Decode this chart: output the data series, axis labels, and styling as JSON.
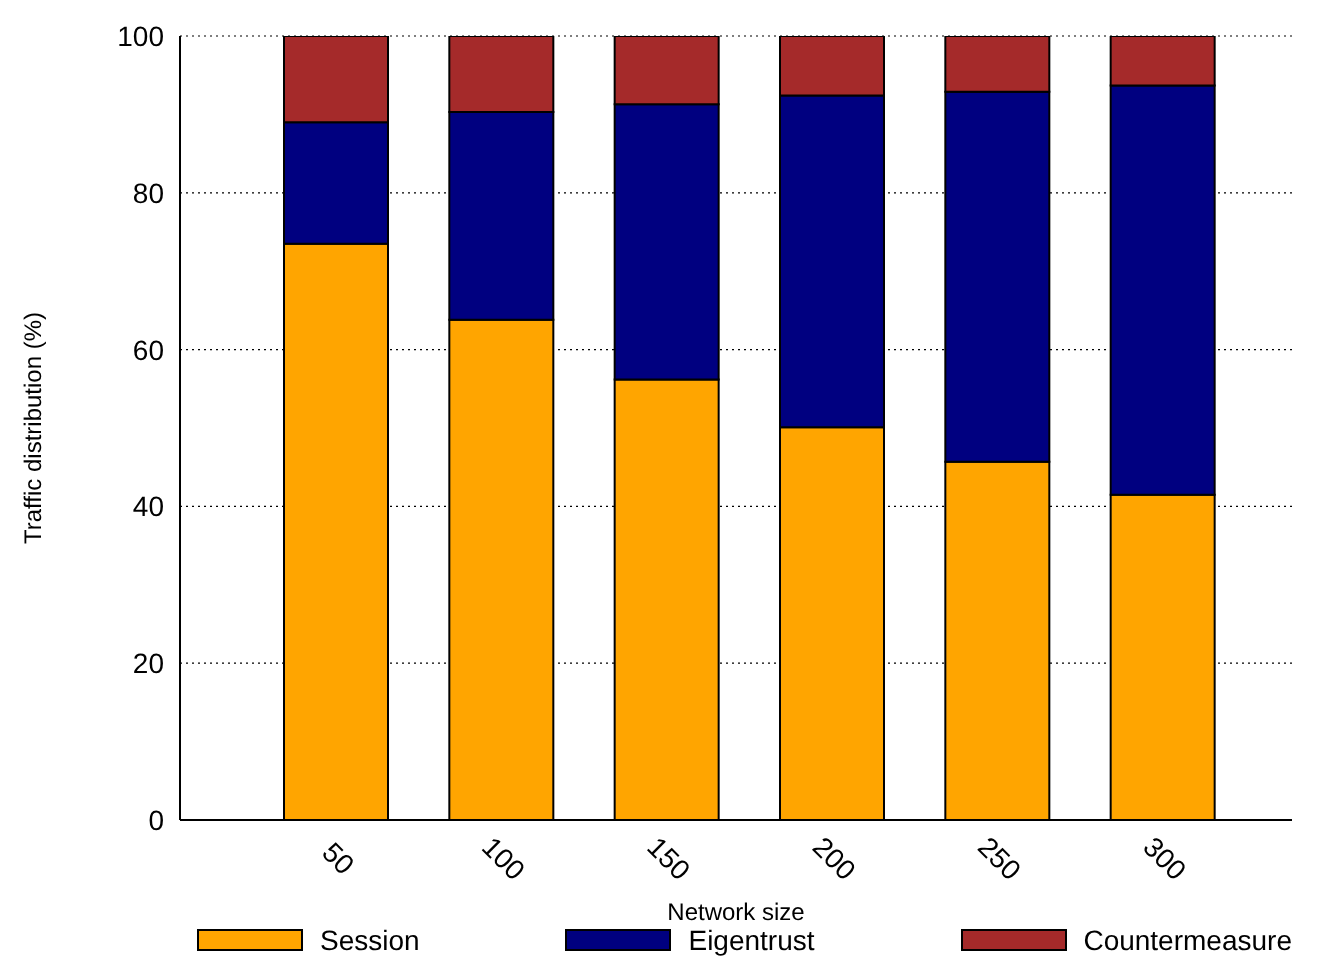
{
  "chart_data": {
    "type": "bar",
    "stacked": true,
    "xlabel": "Network size",
    "ylabel": "Traffic distribution (%)",
    "categories": [
      "50",
      "100",
      "150",
      "200",
      "250",
      "300"
    ],
    "series": [
      {
        "name": "Session",
        "color": "#ffa500",
        "values": [
          73.5,
          63.8,
          56.2,
          50.1,
          45.7,
          41.5
        ]
      },
      {
        "name": "Eigentrust",
        "color": "#000080",
        "values": [
          15.5,
          26.5,
          35.1,
          42.3,
          47.2,
          52.2
        ]
      },
      {
        "name": "Countermeasure",
        "color": "#a52a2a",
        "values": [
          11,
          9.7,
          8.7,
          7.6,
          7.1,
          6.3
        ]
      }
    ],
    "ylim": [
      0,
      100
    ],
    "yticks": [
      0,
      20,
      40,
      60,
      80,
      100
    ],
    "grid": "y",
    "legend": "bottom"
  }
}
